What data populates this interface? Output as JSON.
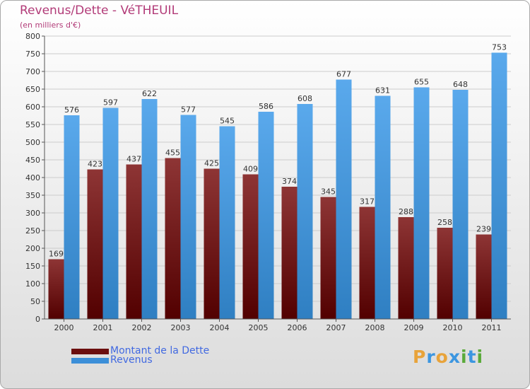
{
  "title": "Revenus/Dette - VéTHEUIL",
  "subtitle": "(en milliers d'€)",
  "logo": {
    "letters": [
      "P",
      "r",
      "o",
      "x",
      "i",
      "t",
      "i"
    ],
    "colors": [
      "#e8a33a",
      "#3c96e0",
      "#e8a33a",
      "#3c96e0",
      "#5aaa3a",
      "#3c96e0",
      "#5aaa3a"
    ]
  },
  "legend": [
    {
      "label": "Montant de la Dette",
      "color": "#6b0e0e"
    },
    {
      "label": "Revenus",
      "color": "#3c8fd8"
    }
  ],
  "colors": {
    "dette_top": "#8e3535",
    "dette_bottom": "#520000",
    "revenus_top": "#5aa9ec",
    "revenus_bottom": "#2f7fc2",
    "axis_text": "#333333",
    "grid": "#cccccc"
  },
  "chart_data": {
    "type": "bar",
    "categories": [
      "2000",
      "2001",
      "2002",
      "2003",
      "2004",
      "2005",
      "2006",
      "2007",
      "2008",
      "2009",
      "2010",
      "2011"
    ],
    "series": [
      {
        "name": "Montant de la Dette",
        "values": [
          169,
          423,
          437,
          455,
          425,
          409,
          374,
          345,
          317,
          288,
          258,
          239
        ]
      },
      {
        "name": "Revenus",
        "values": [
          576,
          597,
          622,
          577,
          545,
          586,
          608,
          677,
          631,
          655,
          648,
          753
        ]
      }
    ],
    "yticks": [
      0,
      50,
      100,
      150,
      200,
      250,
      300,
      350,
      400,
      450,
      500,
      550,
      600,
      650,
      700,
      750,
      800
    ],
    "ylim": [
      0,
      800
    ],
    "grid": true,
    "legend_position": "bottom-left"
  }
}
